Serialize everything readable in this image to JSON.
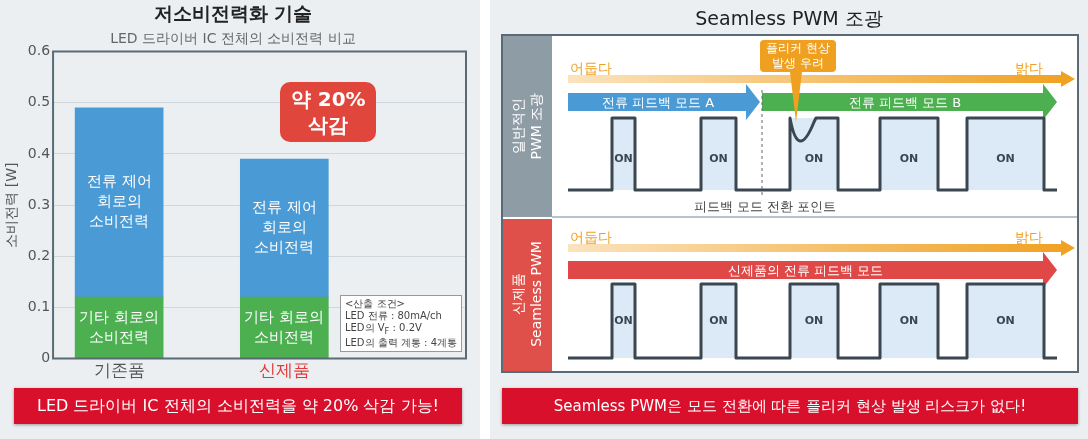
{
  "chart_data": [
    {
      "type": "bar",
      "title": "저소비전력화 기술",
      "subtitle": "LED 드라이버 IC 전체의 소비전력 비교",
      "ylabel": "소비전력 [W]",
      "categories": [
        "기존품",
        "신제품"
      ],
      "stacked": true,
      "series": [
        {
          "name": "기타 회로의 소비전력",
          "color": "#4caf50",
          "values": [
            0.12,
            0.12
          ]
        },
        {
          "name": "전류 제어 회로의 소비전력",
          "color": "#4a9ad6",
          "values": [
            0.37,
            0.27
          ]
        }
      ],
      "ylim": [
        0,
        0.6
      ],
      "yticks": [
        0,
        0.1,
        0.2,
        0.3,
        0.4,
        0.5,
        0.6
      ],
      "grid": "y",
      "legend": false,
      "annotations": [
        "약 20% 삭감",
        "<산출 조건>\nLED 전류 : 80mA/ch\nLED의 V$_{F}$ : 0.2V\nLED의 출력 계통 : 4계통",
        "LED 드라이버 IC 전체의 소비전력을 약 20% 삭감 가능!"
      ]
    },
    {
      "type": "other",
      "title": "Seamless PWM 조광",
      "annotations": [
        "일반적인\nPWM 조광",
        "어둡다",
        "밝다",
        "전류 피드백 모드 A",
        "전류 피드백 모드 B",
        "플리커 현상\n발생 우려",
        "ON",
        "ON",
        "ON",
        "ON",
        "ON",
        "피드백 모드 전환 포인트",
        "신제품\nSeamless PWM",
        "어둡다",
        "밝다",
        "신제품의 전류 피드백 모드",
        "ON",
        "ON",
        "ON",
        "ON",
        "ON",
        "Seamless PWM은 모드 전환에 따른 플리커 현상 발생 리스크가 없다!"
      ]
    }
  ]
}
